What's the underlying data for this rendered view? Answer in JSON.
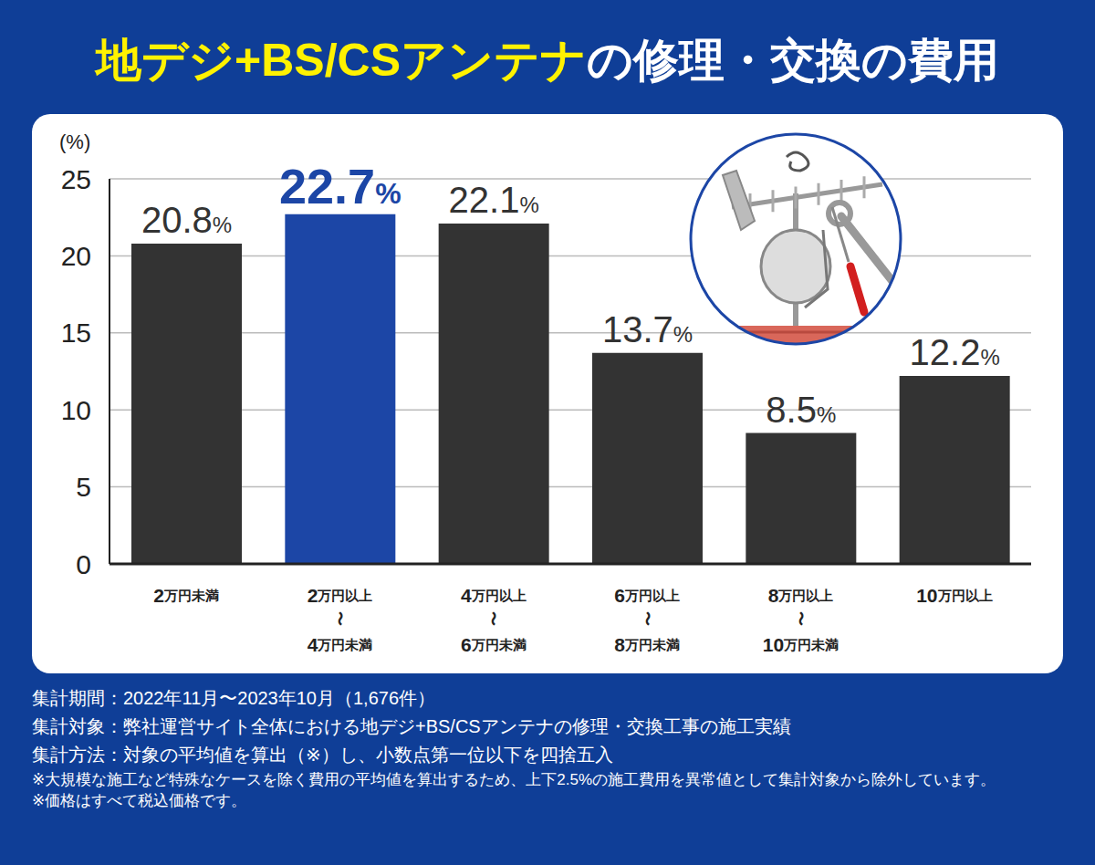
{
  "chart_data": {
    "type": "bar",
    "title": [
      "地デジ+BS/CSアンテナ",
      "の修理・交換の費用"
    ],
    "y_label": "(%)",
    "categories": [
      "2万円未満",
      "2万円以上\n〜\n4万円未満",
      "4万円以上\n〜\n6万円未満",
      "6万円以上\n〜\n8万円未満",
      "8万円以上\n〜\n10万円未満",
      "10万円以上"
    ],
    "values": [
      20.8,
      22.7,
      22.1,
      13.7,
      8.5,
      12.2
    ],
    "value_labels": [
      "20.8%",
      "22.7%",
      "22.1%",
      "13.7%",
      "8.5%",
      "12.2%"
    ],
    "colors": [
      "#333333",
      "#1c46a6",
      "#333333",
      "#333333",
      "#333333",
      "#333333"
    ],
    "ylim": [
      0,
      25
    ],
    "yticks": [
      0,
      5,
      10,
      15,
      20,
      25
    ],
    "grid": true,
    "data_labels": true,
    "notes": [
      "集計期間：2022年11月〜2023年10月（1,676件）",
      "集計対象：弊社運営サイト全体における地デジ+BS/CSアンテナの修理・交換工事の施工実績",
      "集計方法：対象の平均値を算出（※）し、小数点第一位以下を四捨五入"
    ],
    "footnotes": [
      "※大規模な施工など特殊なケースを除く費用の平均値を算出するため、上下2.5%の施工費用を異常値として集計対象から除外しています。",
      "※価格はすべて税込価格です。"
    ]
  }
}
